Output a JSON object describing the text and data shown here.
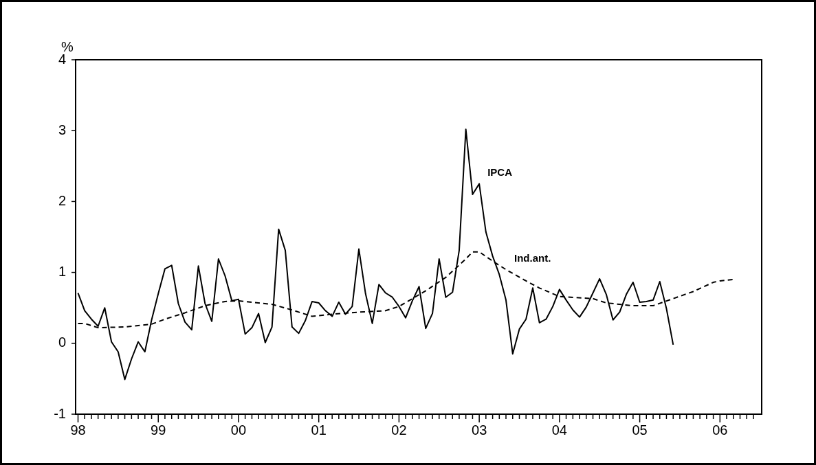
{
  "chart_data": {
    "type": "line",
    "ylabel": "%",
    "xlim": [
      1997.97,
      2006.52
    ],
    "ylim": [
      -1,
      4
    ],
    "yticks": [
      -1,
      0,
      1,
      2,
      3,
      4
    ],
    "xticks": [
      {
        "value": 1998,
        "label": "98"
      },
      {
        "value": 1998.083,
        "label": null
      },
      {
        "value": 1998.167,
        "label": null
      },
      {
        "value": 1998.25,
        "label": null
      },
      {
        "value": 1998.333,
        "label": null
      },
      {
        "value": 1998.417,
        "label": null
      },
      {
        "value": 1998.5,
        "label": null
      },
      {
        "value": 1998.583,
        "label": null
      },
      {
        "value": 1998.667,
        "label": null
      },
      {
        "value": 1998.75,
        "label": null
      },
      {
        "value": 1998.833,
        "label": null
      },
      {
        "value": 1998.917,
        "label": null
      },
      {
        "value": 1999,
        "label": "99"
      },
      {
        "value": 1999.083,
        "label": null
      },
      {
        "value": 1999.167,
        "label": null
      },
      {
        "value": 1999.25,
        "label": null
      },
      {
        "value": 1999.333,
        "label": null
      },
      {
        "value": 1999.417,
        "label": null
      },
      {
        "value": 1999.5,
        "label": null
      },
      {
        "value": 1999.583,
        "label": null
      },
      {
        "value": 1999.667,
        "label": null
      },
      {
        "value": 1999.75,
        "label": null
      },
      {
        "value": 1999.833,
        "label": null
      },
      {
        "value": 1999.917,
        "label": null
      },
      {
        "value": 2000,
        "label": "00"
      },
      {
        "value": 2000.083,
        "label": null
      },
      {
        "value": 2000.167,
        "label": null
      },
      {
        "value": 2000.25,
        "label": null
      },
      {
        "value": 2000.333,
        "label": null
      },
      {
        "value": 2000.417,
        "label": null
      },
      {
        "value": 2000.5,
        "label": null
      },
      {
        "value": 2000.583,
        "label": null
      },
      {
        "value": 2000.667,
        "label": null
      },
      {
        "value": 2000.75,
        "label": null
      },
      {
        "value": 2000.833,
        "label": null
      },
      {
        "value": 2000.917,
        "label": null
      },
      {
        "value": 2001,
        "label": "01"
      },
      {
        "value": 2001.083,
        "label": null
      },
      {
        "value": 2001.167,
        "label": null
      },
      {
        "value": 2001.25,
        "label": null
      },
      {
        "value": 2001.333,
        "label": null
      },
      {
        "value": 2001.417,
        "label": null
      },
      {
        "value": 2001.5,
        "label": null
      },
      {
        "value": 2001.583,
        "label": null
      },
      {
        "value": 2001.667,
        "label": null
      },
      {
        "value": 2001.75,
        "label": null
      },
      {
        "value": 2001.833,
        "label": null
      },
      {
        "value": 2001.917,
        "label": null
      },
      {
        "value": 2002,
        "label": "02"
      },
      {
        "value": 2002.083,
        "label": null
      },
      {
        "value": 2002.167,
        "label": null
      },
      {
        "value": 2002.25,
        "label": null
      },
      {
        "value": 2002.333,
        "label": null
      },
      {
        "value": 2002.417,
        "label": null
      },
      {
        "value": 2002.5,
        "label": null
      },
      {
        "value": 2002.583,
        "label": null
      },
      {
        "value": 2002.667,
        "label": null
      },
      {
        "value": 2002.75,
        "label": null
      },
      {
        "value": 2002.833,
        "label": null
      },
      {
        "value": 2002.917,
        "label": null
      },
      {
        "value": 2003,
        "label": "03"
      },
      {
        "value": 2003.083,
        "label": null
      },
      {
        "value": 2003.167,
        "label": null
      },
      {
        "value": 2003.25,
        "label": null
      },
      {
        "value": 2003.333,
        "label": null
      },
      {
        "value": 2003.417,
        "label": null
      },
      {
        "value": 2003.5,
        "label": null
      },
      {
        "value": 2003.583,
        "label": null
      },
      {
        "value": 2003.667,
        "label": null
      },
      {
        "value": 2003.75,
        "label": null
      },
      {
        "value": 2003.833,
        "label": null
      },
      {
        "value": 2003.917,
        "label": null
      },
      {
        "value": 2004,
        "label": "04"
      },
      {
        "value": 2004.083,
        "label": null
      },
      {
        "value": 2004.167,
        "label": null
      },
      {
        "value": 2004.25,
        "label": null
      },
      {
        "value": 2004.333,
        "label": null
      },
      {
        "value": 2004.417,
        "label": null
      },
      {
        "value": 2004.5,
        "label": null
      },
      {
        "value": 2004.583,
        "label": null
      },
      {
        "value": 2004.667,
        "label": null
      },
      {
        "value": 2004.75,
        "label": null
      },
      {
        "value": 2004.833,
        "label": null
      },
      {
        "value": 2004.917,
        "label": null
      },
      {
        "value": 2005,
        "label": "05"
      },
      {
        "value": 2005.083,
        "label": null
      },
      {
        "value": 2005.167,
        "label": null
      },
      {
        "value": 2005.25,
        "label": null
      },
      {
        "value": 2005.333,
        "label": null
      },
      {
        "value": 2005.417,
        "label": null
      },
      {
        "value": 2005.5,
        "label": null
      },
      {
        "value": 2005.583,
        "label": null
      },
      {
        "value": 2005.667,
        "label": null
      },
      {
        "value": 2005.75,
        "label": null
      },
      {
        "value": 2005.833,
        "label": null
      },
      {
        "value": 2005.917,
        "label": null
      },
      {
        "value": 2006,
        "label": "06"
      },
      {
        "value": 2006.083,
        "label": null
      },
      {
        "value": 2006.167,
        "label": null
      },
      {
        "value": 2006.25,
        "label": null
      },
      {
        "value": 2006.333,
        "label": null
      },
      {
        "value": 2006.417,
        "label": null
      }
    ],
    "grid": false,
    "legend": false,
    "marker": "none",
    "series": [
      {
        "name": "IPCA",
        "color": "#000000",
        "line_style": "solid",
        "x": [
          1998,
          1998.083,
          1998.167,
          1998.25,
          1998.333,
          1998.417,
          1998.5,
          1998.583,
          1998.667,
          1998.75,
          1998.833,
          1998.917,
          1999,
          1999.083,
          1999.167,
          1999.25,
          1999.333,
          1999.417,
          1999.5,
          1999.583,
          1999.667,
          1999.75,
          1999.833,
          1999.917,
          2000,
          2000.083,
          2000.167,
          2000.25,
          2000.333,
          2000.417,
          2000.5,
          2000.583,
          2000.667,
          2000.75,
          2000.833,
          2000.917,
          2001,
          2001.083,
          2001.167,
          2001.25,
          2001.333,
          2001.417,
          2001.5,
          2001.583,
          2001.667,
          2001.75,
          2001.833,
          2001.917,
          2002,
          2002.083,
          2002.167,
          2002.25,
          2002.333,
          2002.417,
          2002.5,
          2002.583,
          2002.667,
          2002.75,
          2002.833,
          2002.917,
          2003,
          2003.083,
          2003.167,
          2003.25,
          2003.333,
          2003.417,
          2003.5,
          2003.583,
          2003.667,
          2003.75,
          2003.833,
          2003.917,
          2004,
          2004.083,
          2004.167,
          2004.25,
          2004.333,
          2004.417,
          2004.5,
          2004.583,
          2004.667,
          2004.75,
          2004.833,
          2004.917,
          2005,
          2005.083,
          2005.167,
          2005.25,
          2005.333,
          2005.417
        ],
        "values": [
          0.71,
          0.46,
          0.34,
          0.24,
          0.5,
          0.02,
          -0.12,
          -0.51,
          -0.22,
          0.02,
          -0.12,
          0.33,
          0.7,
          1.05,
          1.1,
          0.56,
          0.3,
          0.19,
          1.09,
          0.56,
          0.31,
          1.19,
          0.95,
          0.6,
          0.62,
          0.13,
          0.22,
          0.42,
          0.01,
          0.23,
          1.61,
          1.31,
          0.23,
          0.14,
          0.32,
          0.59,
          0.57,
          0.46,
          0.38,
          0.58,
          0.41,
          0.52,
          1.33,
          0.7,
          0.28,
          0.83,
          0.71,
          0.65,
          0.52,
          0.36,
          0.6,
          0.8,
          0.21,
          0.42,
          1.19,
          0.65,
          0.72,
          1.31,
          3.02,
          2.1,
          2.25,
          1.57,
          1.23,
          0.97,
          0.61,
          -0.15,
          0.2,
          0.34,
          0.78,
          0.29,
          0.34,
          0.52,
          0.76,
          0.61,
          0.47,
          0.37,
          0.51,
          0.71,
          0.91,
          0.69,
          0.33,
          0.44,
          0.69,
          0.86,
          0.58,
          0.59,
          0.61,
          0.87,
          0.49,
          -0.02
        ]
      },
      {
        "name": "Ind.ant.",
        "color": "#000000",
        "line_style": "dashed",
        "x": [
          1998,
          1998.083,
          1998.25,
          1998.583,
          1998.833,
          1998.917,
          1999.083,
          1999.333,
          1999.583,
          1999.833,
          2000,
          2000.417,
          2000.667,
          2000.917,
          2001,
          2001.167,
          2001.5,
          2001.833,
          2002,
          2002.333,
          2002.583,
          2002.833,
          2002.917,
          2003,
          2003.167,
          2003.333,
          2003.583,
          2003.75,
          2004,
          2004.417,
          2004.583,
          2004.917,
          2005.167,
          2005.417,
          2005.667,
          2005.917,
          2006,
          2006.167
        ],
        "values": [
          0.28,
          0.28,
          0.22,
          0.23,
          0.26,
          0.27,
          0.34,
          0.43,
          0.53,
          0.59,
          0.6,
          0.55,
          0.47,
          0.38,
          0.39,
          0.41,
          0.44,
          0.46,
          0.52,
          0.74,
          0.93,
          1.19,
          1.29,
          1.29,
          1.16,
          1.04,
          0.88,
          0.78,
          0.66,
          0.63,
          0.57,
          0.53,
          0.53,
          0.63,
          0.73,
          0.86,
          0.88,
          0.9
        ]
      }
    ]
  }
}
